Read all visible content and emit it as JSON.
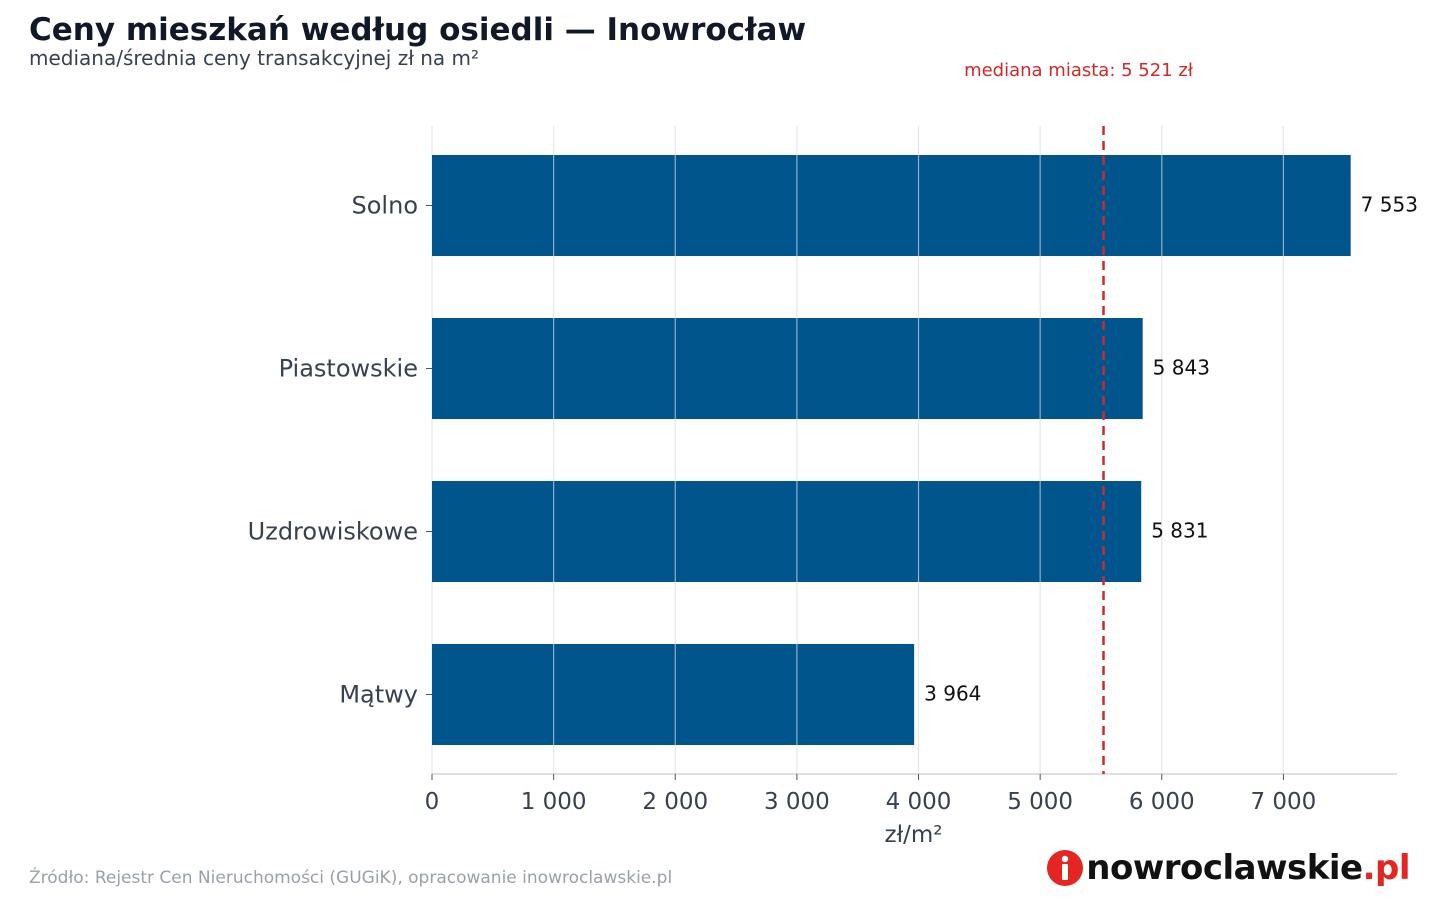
{
  "header": {
    "title": "Ceny mieszkań według osiedli — Inowrocław",
    "subtitle": "mediana/średnia ceny transakcyjnej zł na m²"
  },
  "footer": {
    "source": "Źródło: Rejestr Cen Nieruchomości (GUGiK), opracowanie inowroclawskie.pl",
    "logo_i": "i",
    "logo_main": "nowroclawskie",
    "logo_suffix": ".pl"
  },
  "colors": {
    "bar": "#00558d",
    "median_line": "#d62728",
    "grid": "#e5e7eb",
    "logo_red": "#e52521"
  },
  "chart_data": {
    "type": "bar",
    "orientation": "horizontal",
    "categories": [
      "Solno",
      "Piastowskie",
      "Uzdrowiskowe",
      "Mątwy"
    ],
    "values": [
      7553,
      5843,
      5831,
      3964
    ],
    "value_labels": [
      "7 553",
      "5 843",
      "5 831",
      "3 964"
    ],
    "xlabel": "zł/m²",
    "ylabel": "",
    "xlim": [
      0,
      7900
    ],
    "xticks": [
      0,
      1000,
      2000,
      3000,
      4000,
      5000,
      6000,
      7000
    ],
    "xtick_labels": [
      "0",
      "1 000",
      "2 000",
      "3 000",
      "4 000",
      "5 000",
      "6 000",
      "7 000"
    ],
    "reference_line": {
      "value": 5521,
      "label": "mediana miasta: 5 521 zł",
      "style": "dashed"
    },
    "grid": "vertical"
  }
}
